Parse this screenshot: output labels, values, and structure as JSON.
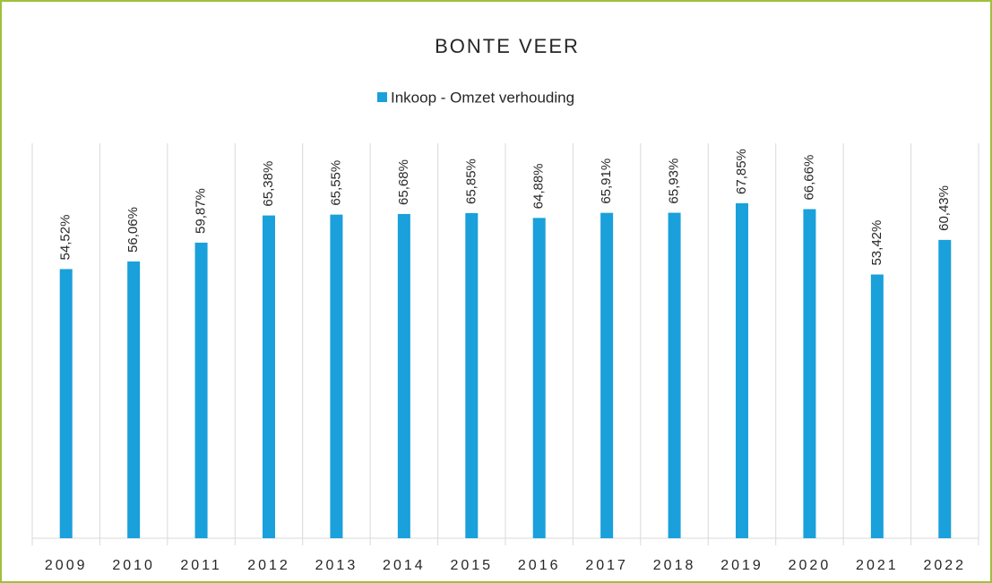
{
  "chart_data": {
    "type": "bar",
    "title": "BONTE VEER",
    "categories": [
      "2009",
      "2010",
      "2011",
      "2012",
      "2013",
      "2014",
      "2015",
      "2016",
      "2017",
      "2018",
      "2019",
      "2020",
      "2021",
      "2022"
    ],
    "series": [
      {
        "name": "Inkoop - Omzet verhouding",
        "color": "#1aa0db",
        "values": [
          54.52,
          56.06,
          59.87,
          65.38,
          65.55,
          65.68,
          65.85,
          64.88,
          65.91,
          65.93,
          67.85,
          66.66,
          53.42,
          60.43
        ],
        "value_labels": [
          "54,52%",
          "56,06%",
          "59,87%",
          "65,38%",
          "65,55%",
          "65,68%",
          "65,85%",
          "64,88%",
          "65,91%",
          "65,93%",
          "67,85%",
          "66,66%",
          "53,42%",
          "60,43%"
        ]
      }
    ],
    "ylim": [
      0,
      80
    ],
    "legend": "top"
  }
}
